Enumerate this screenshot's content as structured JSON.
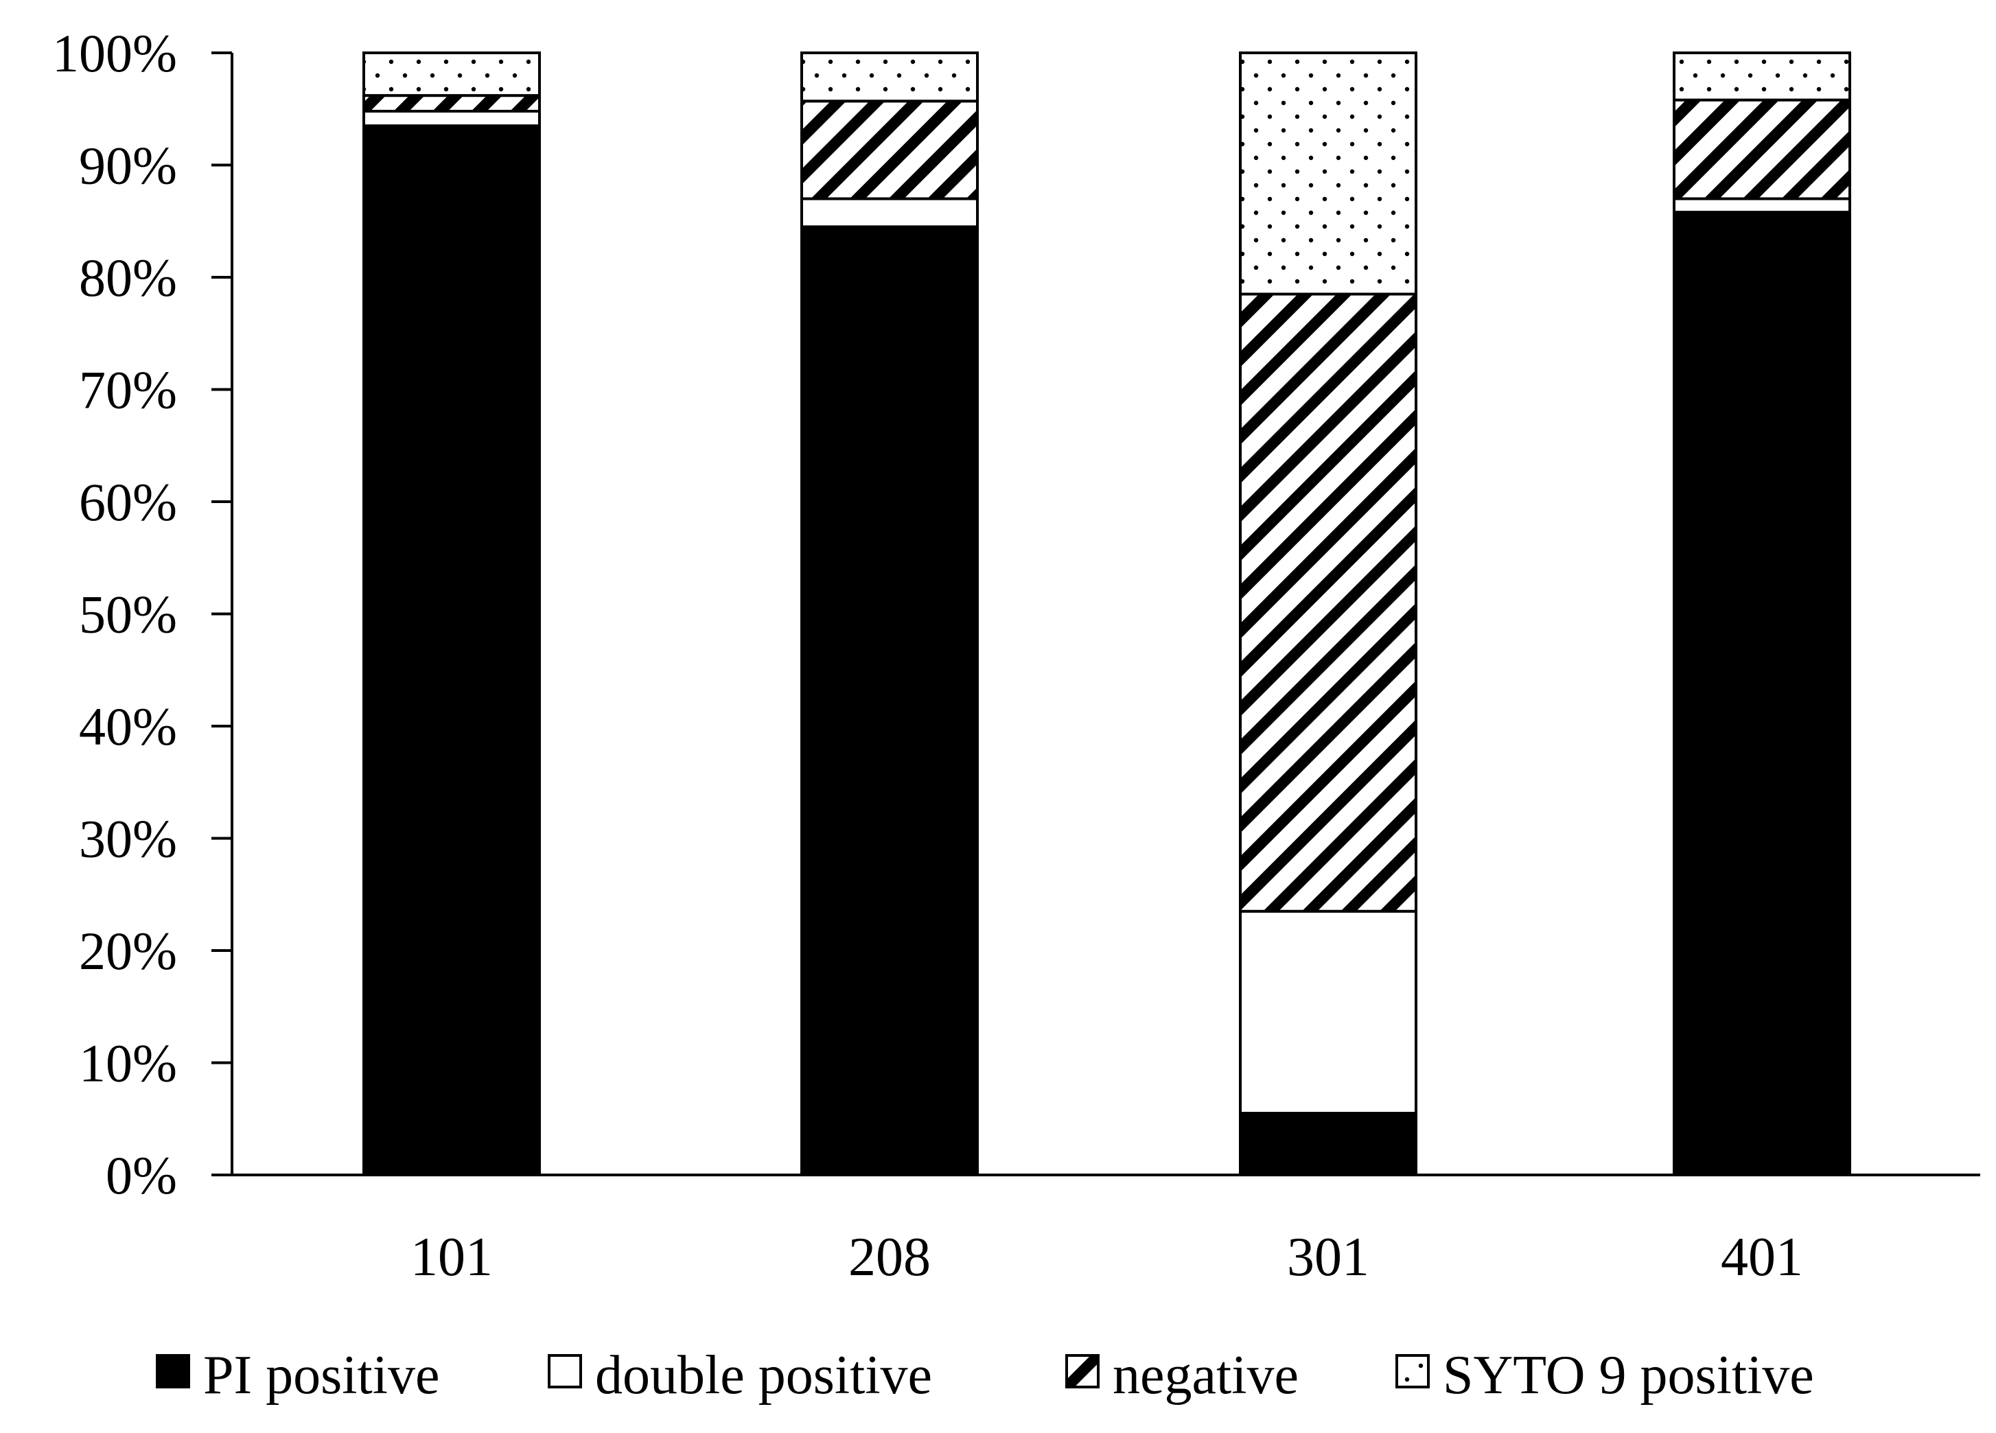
{
  "chart_data": {
    "type": "bar",
    "stacked": true,
    "normalized": true,
    "title": "",
    "xlabel": "",
    "ylabel": "",
    "categories": [
      "101",
      "208",
      "301",
      "401"
    ],
    "ylim": [
      0,
      100
    ],
    "yticks": [
      "0%",
      "10%",
      "20%",
      "30%",
      "40%",
      "50%",
      "60%",
      "70%",
      "80%",
      "90%",
      "100%"
    ],
    "series": [
      {
        "name": "PI positive",
        "pattern": "solid",
        "values": [
          93.5,
          84.5,
          5.5,
          85.8
        ]
      },
      {
        "name": "double positive",
        "pattern": "white",
        "values": [
          1.3,
          2.5,
          18.0,
          1.2
        ]
      },
      {
        "name": "negative",
        "pattern": "diagonal-hatch",
        "values": [
          1.4,
          8.7,
          55.0,
          8.8
        ]
      },
      {
        "name": "SYTO 9 positive",
        "pattern": "dots",
        "values": [
          3.8,
          4.3,
          21.5,
          4.2
        ]
      }
    ],
    "legend_position": "bottom",
    "grid": false,
    "colors": {
      "ink": "#000000",
      "paper": "#ffffff"
    }
  }
}
